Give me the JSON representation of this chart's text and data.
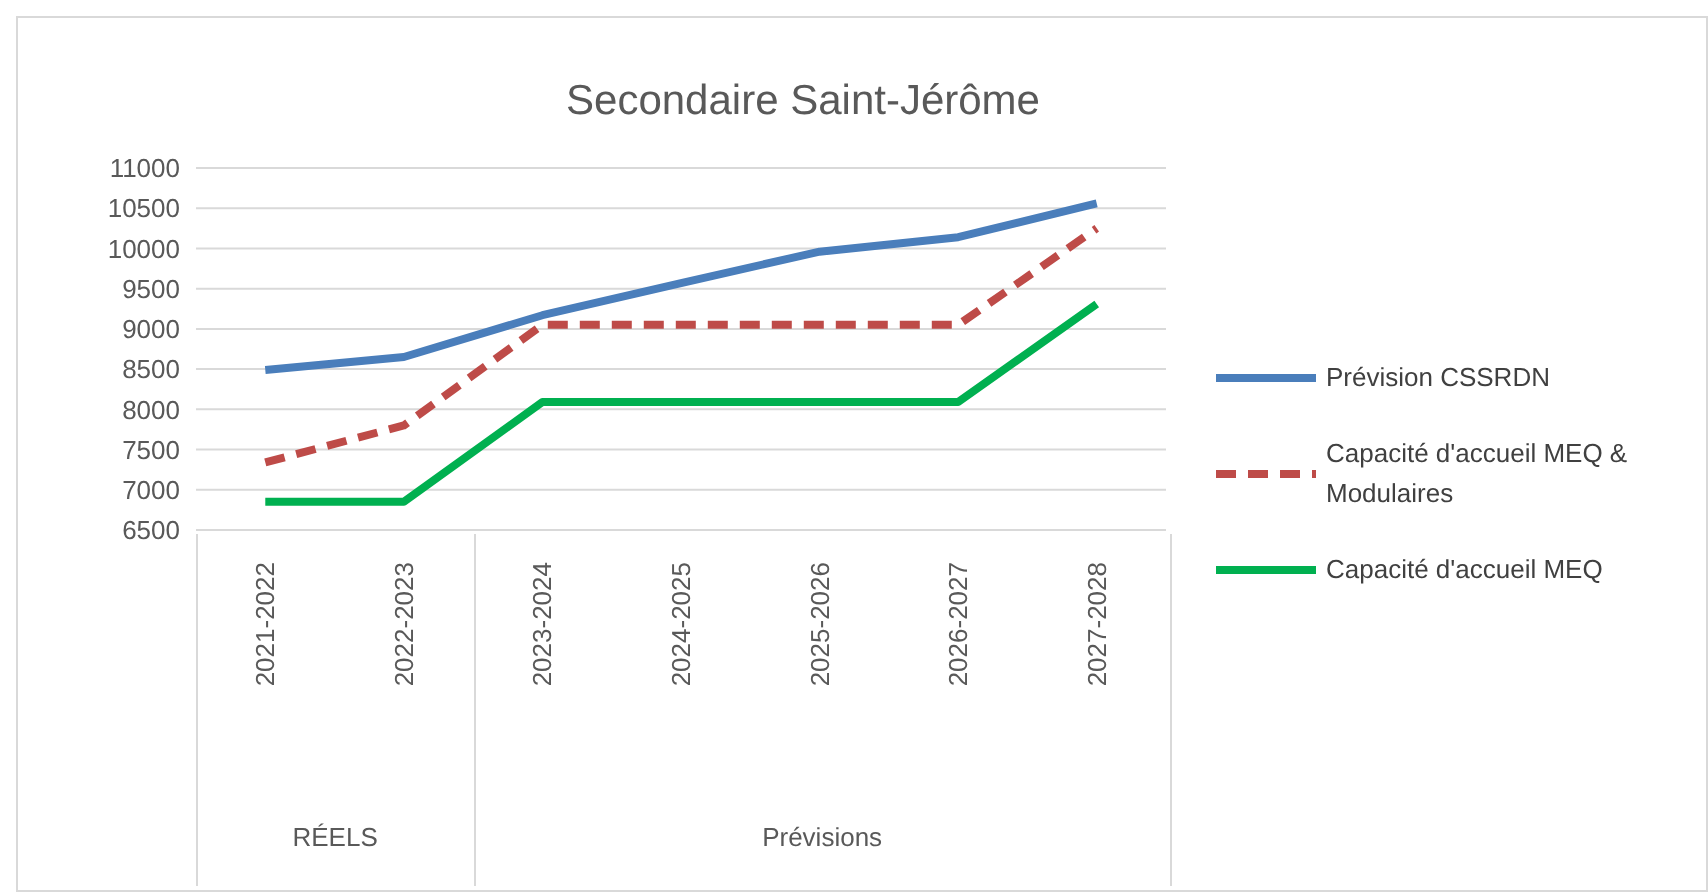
{
  "chart_data": {
    "type": "line",
    "title": "Secondaire Saint-Jérôme",
    "categories": [
      "2021-2022",
      "2022-2023",
      "2023-2024",
      "2024-2025",
      "2025-2026",
      "2026-2027",
      "2027-2028"
    ],
    "series": [
      {
        "name": "Prévision CSSRDN",
        "color": "#4a7ebb",
        "values": [
          8490,
          8650,
          9170,
          9570,
          9960,
          10140,
          10560
        ]
      },
      {
        "name": "Capacité d'accueil MEQ & Modulaires",
        "color": "#be4b48",
        "line_style": "dashed",
        "values": [
          7340,
          7800,
          9050,
          9050,
          9050,
          9050,
          10250
        ]
      },
      {
        "name": "Capacité d'accueil MEQ",
        "color": "#00b050",
        "values": [
          6850,
          6850,
          8090,
          8090,
          8090,
          8090,
          9310
        ]
      }
    ],
    "ylim": [
      6500,
      11000
    ],
    "yticks": [
      6500,
      7000,
      7500,
      8000,
      8500,
      9000,
      9500,
      10000,
      10500,
      11000
    ],
    "grid": "y",
    "legend": "right",
    "marker": "none",
    "annotations": [
      "RÉELS",
      "Prévisions"
    ]
  }
}
